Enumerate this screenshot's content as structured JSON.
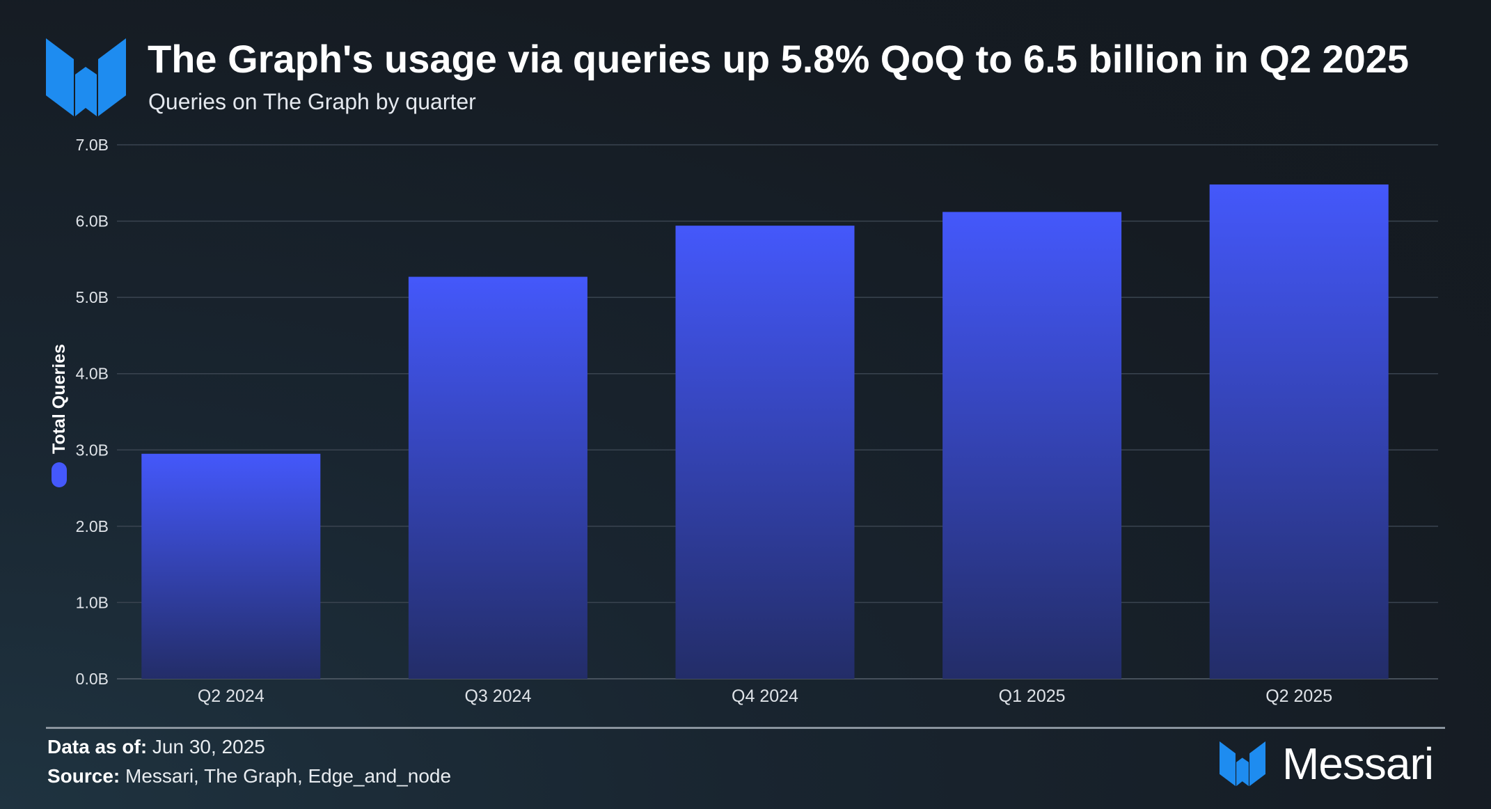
{
  "header": {
    "title": "The Graph's usage via queries up 5.8% QoQ to 6.5 billion in Q2 2025",
    "subtitle": "Queries on The Graph by quarter",
    "logo_icon": "messari-logo-icon"
  },
  "colors": {
    "bar_top": "#4458fb",
    "bar_bottom": "#232d68",
    "logo_blue": "#1e8cf0",
    "grid": "#3a4450"
  },
  "chart_data": {
    "type": "bar",
    "title": "The Graph's usage via queries up 5.8% QoQ to 6.5 billion in Q2 2025",
    "subtitle": "Queries on The Graph by quarter",
    "categories": [
      "Q2 2024",
      "Q3 2024",
      "Q4 2024",
      "Q1 2025",
      "Q2 2025"
    ],
    "series": [
      {
        "name": "Total Queries",
        "values": [
          2.95,
          5.27,
          5.94,
          6.12,
          6.48
        ]
      }
    ],
    "yticks": [
      "0.0B",
      "1.0B",
      "2.0B",
      "3.0B",
      "4.0B",
      "5.0B",
      "6.0B",
      "7.0B"
    ],
    "ylim": [
      0,
      7
    ],
    "xlabel": "",
    "ylabel": "Total Queries",
    "grid": true,
    "legend": "left-vertical"
  },
  "footer": {
    "data_as_of_label": "Data as of:",
    "data_as_of_value": " Jun 30, 2025",
    "source_label": "Source:",
    "source_value": " Messari, The Graph, Edge_and_node",
    "brand_name": "Messari",
    "brand_icon": "messari-logo-icon"
  }
}
